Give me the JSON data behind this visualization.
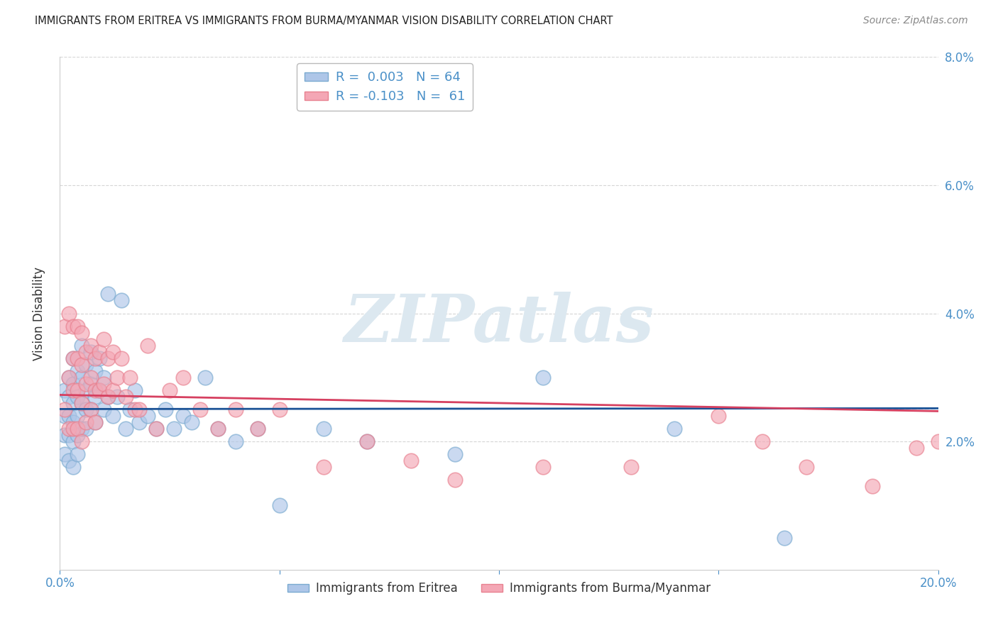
{
  "title": "IMMIGRANTS FROM ERITREA VS IMMIGRANTS FROM BURMA/MYANMAR VISION DISABILITY CORRELATION CHART",
  "source": "Source: ZipAtlas.com",
  "ylabel": "Vision Disability",
  "xlim": [
    0.0,
    0.2
  ],
  "ylim": [
    0.0,
    0.08
  ],
  "ytick_positions": [
    0.02,
    0.04,
    0.06,
    0.08
  ],
  "ytick_labels": [
    "2.0%",
    "4.0%",
    "6.0%",
    "8.0%"
  ],
  "xtick_positions": [
    0.0,
    0.05,
    0.1,
    0.15,
    0.2
  ],
  "xtick_labels": [
    "0.0%",
    "",
    "",
    "",
    "20.0%"
  ],
  "legend_labels": [
    "Immigrants from Eritrea",
    "Immigrants from Burma/Myanmar"
  ],
  "eritrea_R": 0.003,
  "eritrea_N": 64,
  "burma_R": -0.103,
  "burma_N": 61,
  "blue_fill": "#aec6e8",
  "pink_fill": "#f4a7b5",
  "blue_edge": "#7aaad0",
  "pink_edge": "#e8808f",
  "blue_line_color": "#1a5296",
  "pink_line_color": "#d64060",
  "blue_dash_color": "#90b8d8",
  "tick_color": "#4a90c8",
  "grid_color": "#cccccc",
  "title_color": "#222222",
  "source_color": "#888888",
  "ylabel_color": "#333333",
  "eritrea_x": [
    0.001,
    0.001,
    0.001,
    0.001,
    0.002,
    0.002,
    0.002,
    0.002,
    0.002,
    0.003,
    0.003,
    0.003,
    0.003,
    0.003,
    0.003,
    0.004,
    0.004,
    0.004,
    0.004,
    0.004,
    0.005,
    0.005,
    0.005,
    0.005,
    0.006,
    0.006,
    0.006,
    0.006,
    0.007,
    0.007,
    0.007,
    0.008,
    0.008,
    0.008,
    0.009,
    0.009,
    0.01,
    0.01,
    0.011,
    0.011,
    0.012,
    0.013,
    0.014,
    0.015,
    0.016,
    0.017,
    0.018,
    0.02,
    0.022,
    0.024,
    0.026,
    0.028,
    0.03,
    0.033,
    0.036,
    0.04,
    0.045,
    0.05,
    0.06,
    0.07,
    0.09,
    0.11,
    0.14,
    0.165
  ],
  "eritrea_y": [
    0.028,
    0.024,
    0.021,
    0.018,
    0.03,
    0.027,
    0.024,
    0.021,
    0.017,
    0.033,
    0.029,
    0.026,
    0.023,
    0.02,
    0.016,
    0.031,
    0.027,
    0.024,
    0.021,
    0.018,
    0.035,
    0.03,
    0.026,
    0.022,
    0.032,
    0.028,
    0.025,
    0.022,
    0.034,
    0.029,
    0.025,
    0.031,
    0.027,
    0.023,
    0.033,
    0.028,
    0.03,
    0.025,
    0.043,
    0.027,
    0.024,
    0.027,
    0.042,
    0.022,
    0.025,
    0.028,
    0.023,
    0.024,
    0.022,
    0.025,
    0.022,
    0.024,
    0.023,
    0.03,
    0.022,
    0.02,
    0.022,
    0.01,
    0.022,
    0.02,
    0.018,
    0.03,
    0.022,
    0.005
  ],
  "burma_x": [
    0.001,
    0.001,
    0.002,
    0.002,
    0.002,
    0.003,
    0.003,
    0.003,
    0.003,
    0.004,
    0.004,
    0.004,
    0.004,
    0.005,
    0.005,
    0.005,
    0.005,
    0.006,
    0.006,
    0.006,
    0.007,
    0.007,
    0.007,
    0.008,
    0.008,
    0.008,
    0.009,
    0.009,
    0.01,
    0.01,
    0.011,
    0.011,
    0.012,
    0.012,
    0.013,
    0.014,
    0.015,
    0.016,
    0.017,
    0.018,
    0.02,
    0.022,
    0.025,
    0.028,
    0.032,
    0.036,
    0.04,
    0.045,
    0.05,
    0.06,
    0.07,
    0.08,
    0.09,
    0.11,
    0.13,
    0.15,
    0.16,
    0.17,
    0.185,
    0.195,
    0.2
  ],
  "burma_y": [
    0.038,
    0.025,
    0.04,
    0.03,
    0.022,
    0.038,
    0.033,
    0.028,
    0.022,
    0.038,
    0.033,
    0.028,
    0.022,
    0.037,
    0.032,
    0.026,
    0.02,
    0.034,
    0.029,
    0.023,
    0.035,
    0.03,
    0.025,
    0.033,
    0.028,
    0.023,
    0.034,
    0.028,
    0.036,
    0.029,
    0.033,
    0.027,
    0.034,
    0.028,
    0.03,
    0.033,
    0.027,
    0.03,
    0.025,
    0.025,
    0.035,
    0.022,
    0.028,
    0.03,
    0.025,
    0.022,
    0.025,
    0.022,
    0.025,
    0.016,
    0.02,
    0.017,
    0.014,
    0.016,
    0.016,
    0.024,
    0.02,
    0.016,
    0.013,
    0.019,
    0.02
  ]
}
